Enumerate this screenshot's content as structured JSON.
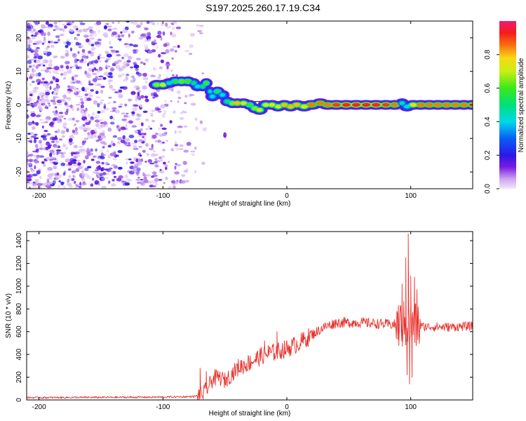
{
  "title": "S197.2025.260.17.19.C34",
  "chart_data": [
    {
      "type": "heatmap",
      "xlabel": "Height of straight line (km)",
      "ylabel": "Frequency (Hz)",
      "xlim": [
        -210,
        150
      ],
      "ylim": [
        -25,
        25
      ],
      "xticks": [
        -200,
        -100,
        0,
        100
      ],
      "yticks": [
        -20,
        -10,
        0,
        10,
        20
      ],
      "colorbar": {
        "label": "Normalized spectral amplitude",
        "range": [
          0,
          1
        ],
        "ticks": [
          0.0,
          0.2,
          0.4,
          0.6,
          0.8
        ]
      },
      "ridge": [
        {
          "x": -105,
          "y": 6.0,
          "a": 0.65
        },
        {
          "x": -100,
          "y": 6.0,
          "a": 0.7
        },
        {
          "x": -95,
          "y": 6.5,
          "a": 0.45
        },
        {
          "x": -90,
          "y": 7.0,
          "a": 0.55
        },
        {
          "x": -85,
          "y": 7.0,
          "a": 0.62
        },
        {
          "x": -80,
          "y": 7.0,
          "a": 0.6
        },
        {
          "x": -75,
          "y": 6.5,
          "a": 0.5
        },
        {
          "x": -72,
          "y": 5.5,
          "a": 0.4
        },
        {
          "x": -68,
          "y": 5.5,
          "a": 0.5
        },
        {
          "x": -65,
          "y": 6.5,
          "a": 0.6
        },
        {
          "x": -62,
          "y": 4.0,
          "a": 0.45
        },
        {
          "x": -60,
          "y": 2.5,
          "a": 0.4
        },
        {
          "x": -56,
          "y": 4.0,
          "a": 0.55
        },
        {
          "x": -52,
          "y": 3.0,
          "a": 0.4
        },
        {
          "x": -48,
          "y": 1.0,
          "a": 0.5
        },
        {
          "x": -44,
          "y": 0.5,
          "a": 0.65
        },
        {
          "x": -40,
          "y": 0.5,
          "a": 0.8
        },
        {
          "x": -35,
          "y": 0.5,
          "a": 0.75
        },
        {
          "x": -30,
          "y": 0.0,
          "a": 0.6
        },
        {
          "x": -26,
          "y": -1.0,
          "a": 0.65
        },
        {
          "x": -22,
          "y": -1.5,
          "a": 0.7
        },
        {
          "x": -17,
          "y": 0.0,
          "a": 0.7
        },
        {
          "x": -12,
          "y": 0.0,
          "a": 0.75
        },
        {
          "x": -7,
          "y": -0.5,
          "a": 0.7
        },
        {
          "x": -2,
          "y": 0.0,
          "a": 0.8
        },
        {
          "x": 3,
          "y": -0.5,
          "a": 0.8
        },
        {
          "x": 8,
          "y": 0.0,
          "a": 0.8
        },
        {
          "x": 14,
          "y": -0.5,
          "a": 0.75
        },
        {
          "x": 20,
          "y": 0.0,
          "a": 0.85
        },
        {
          "x": 27,
          "y": 0.5,
          "a": 0.85
        },
        {
          "x": 33,
          "y": 0.0,
          "a": 0.85
        },
        {
          "x": 40,
          "y": 0.0,
          "a": 0.9
        },
        {
          "x": 48,
          "y": 0.0,
          "a": 0.92
        },
        {
          "x": 56,
          "y": 0.0,
          "a": 0.92
        },
        {
          "x": 64,
          "y": 0.0,
          "a": 0.92
        },
        {
          "x": 72,
          "y": 0.0,
          "a": 0.92
        },
        {
          "x": 80,
          "y": 0.0,
          "a": 0.9
        },
        {
          "x": 87,
          "y": 0.0,
          "a": 0.85
        },
        {
          "x": 93,
          "y": 0.5,
          "a": 0.45
        },
        {
          "x": 97,
          "y": -0.5,
          "a": 0.4
        },
        {
          "x": 102,
          "y": 0.0,
          "a": 0.75
        },
        {
          "x": 108,
          "y": 0.0,
          "a": 0.85
        },
        {
          "x": 115,
          "y": 0.0,
          "a": 0.85
        },
        {
          "x": 122,
          "y": 0.0,
          "a": 0.85
        },
        {
          "x": 129,
          "y": 0.0,
          "a": 0.85
        },
        {
          "x": 136,
          "y": 0.0,
          "a": 0.85
        },
        {
          "x": 143,
          "y": 0.0,
          "a": 0.85
        },
        {
          "x": 149,
          "y": 0.0,
          "a": 0.85
        }
      ],
      "ridge_line": {
        "x_range": [
          -48,
          150
        ],
        "y": 1.0
      },
      "noise_region": {
        "x_range": [
          -210,
          -75
        ]
      }
    },
    {
      "type": "line",
      "xlabel": "Height of straight line (km)",
      "ylabel": "SNR (10 * v/v)",
      "xlim": [
        -210,
        150
      ],
      "ylim": [
        0,
        1480
      ],
      "xticks": [
        -200,
        -100,
        0,
        100
      ],
      "yticks": [
        0,
        200,
        400,
        600,
        800,
        1000,
        1200,
        1400
      ],
      "series": [
        {
          "name": "SNR",
          "color": "#e8302b",
          "anchors": [
            {
              "x": -210,
              "y": 20
            },
            {
              "x": -100,
              "y": 25
            },
            {
              "x": -75,
              "y": 30
            },
            {
              "x": -68,
              "y": 50
            },
            {
              "x": -63,
              "y": 120
            },
            {
              "x": -60,
              "y": 180
            },
            {
              "x": -55,
              "y": 200
            },
            {
              "x": -50,
              "y": 170
            },
            {
              "x": -45,
              "y": 220
            },
            {
              "x": -40,
              "y": 280
            },
            {
              "x": -30,
              "y": 330
            },
            {
              "x": -20,
              "y": 390
            },
            {
              "x": -10,
              "y": 420
            },
            {
              "x": 0,
              "y": 450
            },
            {
              "x": 10,
              "y": 500
            },
            {
              "x": 20,
              "y": 570
            },
            {
              "x": 30,
              "y": 640
            },
            {
              "x": 40,
              "y": 680
            },
            {
              "x": 60,
              "y": 680
            },
            {
              "x": 80,
              "y": 665
            },
            {
              "x": 90,
              "y": 660
            },
            {
              "x": 110,
              "y": 645
            },
            {
              "x": 130,
              "y": 640
            },
            {
              "x": 150,
              "y": 650
            }
          ],
          "peaks": [
            {
              "x": -70,
              "y": 280
            },
            {
              "x": -65,
              "y": 250
            },
            {
              "x": -58,
              "y": 270
            },
            {
              "x": -48,
              "y": 200
            },
            {
              "x": -35,
              "y": 280
            },
            {
              "x": -18,
              "y": 520
            },
            {
              "x": -15,
              "y": 480
            },
            {
              "x": -8,
              "y": 600
            },
            {
              "x": 93,
              "y": 1020
            },
            {
              "x": 96,
              "y": 1250
            },
            {
              "x": 98,
              "y": 1460
            },
            {
              "x": 100,
              "y": 1090
            },
            {
              "x": 103,
              "y": 1080
            },
            {
              "x": 105,
              "y": 970
            }
          ],
          "dips": [
            {
              "x": 97,
              "y": 220
            },
            {
              "x": 99,
              "y": 140
            },
            {
              "x": 101,
              "y": 200
            }
          ]
        }
      ]
    }
  ]
}
